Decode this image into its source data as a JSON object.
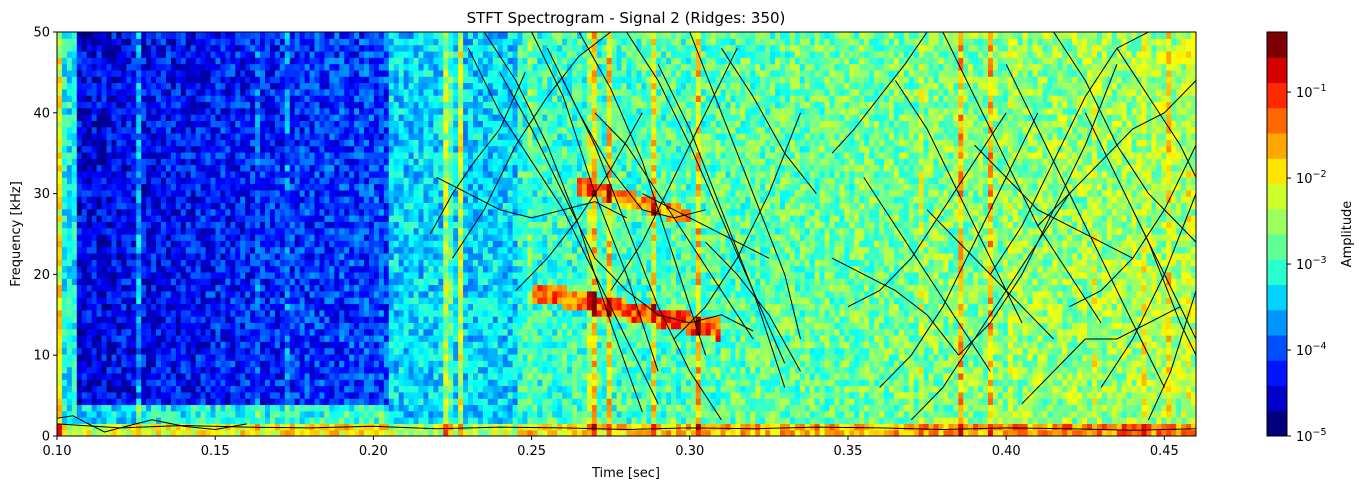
{
  "chart_data": {
    "type": "heatmap",
    "title": "STFT Spectrogram - Signal 2 (Ridges: 350)",
    "xlabel": "Time [sec]",
    "ylabel": "Frequency [kHz]",
    "xlim": [
      0.1,
      0.46
    ],
    "ylim": [
      0,
      50
    ],
    "x_ticks": [
      {
        "value": 0.1,
        "label": "0.10"
      },
      {
        "value": 0.15,
        "label": "0.15"
      },
      {
        "value": 0.2,
        "label": "0.20"
      },
      {
        "value": 0.25,
        "label": "0.25"
      },
      {
        "value": 0.3,
        "label": "0.30"
      },
      {
        "value": 0.35,
        "label": "0.35"
      },
      {
        "value": 0.4,
        "label": "0.40"
      },
      {
        "value": 0.45,
        "label": "0.45"
      }
    ],
    "y_ticks": [
      {
        "value": 0,
        "label": "0"
      },
      {
        "value": 10,
        "label": "10"
      },
      {
        "value": 20,
        "label": "20"
      },
      {
        "value": 30,
        "label": "30"
      },
      {
        "value": 40,
        "label": "40"
      },
      {
        "value": 50,
        "label": "50"
      }
    ],
    "colorbar": {
      "label": "Amplitude",
      "scale": "log",
      "range": [
        1e-05,
        0.5
      ],
      "colormap": "jet",
      "ticks": [
        {
          "value": 1e-05,
          "base": "10",
          "exp": "−5"
        },
        {
          "value": 0.0001,
          "base": "10",
          "exp": "−4"
        },
        {
          "value": 0.001,
          "base": "10",
          "exp": "−3"
        },
        {
          "value": 0.01,
          "base": "10",
          "exp": "−2"
        },
        {
          "value": 0.1,
          "base": "10",
          "exp": "−1"
        }
      ],
      "levels": [
        "#00007f",
        "#0000c8",
        "#0014ff",
        "#0050ff",
        "#0094ff",
        "#00d4ff",
        "#29ffce",
        "#60ff96",
        "#9aff5d",
        "#ceff29",
        "#ffe600",
        "#ffa700",
        "#ff6800",
        "#ff2900",
        "#d40000",
        "#7f0000"
      ]
    },
    "ridge_count": 350,
    "ridges": [
      {
        "t": [
          0.1,
          0.12,
          0.14,
          0.16,
          0.18,
          0.2,
          0.22,
          0.24,
          0.26,
          0.28,
          0.3,
          0.32,
          0.34,
          0.36,
          0.38,
          0.4,
          0.42,
          0.44,
          0.46
        ],
        "f": [
          1.5,
          1.0,
          1.3,
          1.1,
          1.0,
          1.2,
          0.9,
          1.1,
          1.0,
          0.8,
          1.0,
          0.9,
          1.1,
          1.0,
          0.8,
          1.0,
          0.9,
          0.7,
          0.9
        ]
      },
      {
        "t": [
          0.1,
          0.105,
          0.11,
          0.115,
          0.12,
          0.13,
          0.14,
          0.15,
          0.16
        ],
        "f": [
          2.2,
          2.5,
          1.5,
          0.5,
          1.0,
          2.0,
          1.2,
          0.8,
          1.5
        ]
      },
      {
        "t": [
          0.218,
          0.225,
          0.232,
          0.24,
          0.248
        ],
        "f": [
          25,
          30,
          34,
          38,
          45
        ]
      },
      {
        "t": [
          0.22,
          0.23,
          0.24,
          0.25,
          0.26,
          0.27,
          0.28
        ],
        "f": [
          32,
          30,
          28,
          27,
          28,
          29,
          27
        ]
      },
      {
        "t": [
          0.225,
          0.235,
          0.245,
          0.255,
          0.265,
          0.275
        ],
        "f": [
          22,
          28,
          36,
          42,
          47,
          50
        ]
      },
      {
        "t": [
          0.23,
          0.24,
          0.25,
          0.26,
          0.27,
          0.28,
          0.29
        ],
        "f": [
          48,
          40,
          34,
          28,
          20,
          12,
          4
        ]
      },
      {
        "t": [
          0.235,
          0.245,
          0.255,
          0.265,
          0.275,
          0.285
        ],
        "f": [
          50,
          44,
          36,
          26,
          14,
          3
        ]
      },
      {
        "t": [
          0.24,
          0.25,
          0.26,
          0.27,
          0.28,
          0.29,
          0.3,
          0.31,
          0.32
        ],
        "f": [
          45,
          38,
          30,
          22,
          18,
          15,
          14,
          15,
          13
        ]
      },
      {
        "t": [
          0.245,
          0.255,
          0.265,
          0.275,
          0.285
        ],
        "f": [
          18,
          22,
          27,
          33,
          40
        ]
      },
      {
        "t": [
          0.25,
          0.26,
          0.27,
          0.28,
          0.29
        ],
        "f": [
          50,
          42,
          30,
          20,
          8
        ]
      },
      {
        "t": [
          0.255,
          0.265,
          0.275,
          0.285,
          0.295,
          0.305
        ],
        "f": [
          48,
          40,
          33,
          28,
          27,
          28
        ]
      },
      {
        "t": [
          0.26,
          0.27,
          0.28,
          0.29,
          0.3,
          0.31
        ],
        "f": [
          44,
          36,
          26,
          16,
          8,
          2
        ]
      },
      {
        "t": [
          0.265,
          0.275,
          0.285,
          0.295,
          0.305
        ],
        "f": [
          50,
          43,
          34,
          22,
          10
        ]
      },
      {
        "t": [
          0.27,
          0.28,
          0.29,
          0.3,
          0.31,
          0.32
        ],
        "f": [
          40,
          36,
          30,
          24,
          18,
          12
        ]
      },
      {
        "t": [
          0.275,
          0.285,
          0.295,
          0.305,
          0.315
        ],
        "f": [
          18,
          24,
          32,
          40,
          48
        ]
      },
      {
        "t": [
          0.28,
          0.29,
          0.3,
          0.31,
          0.32,
          0.33
        ],
        "f": [
          50,
          44,
          36,
          27,
          18,
          9
        ]
      },
      {
        "t": [
          0.285,
          0.295,
          0.305,
          0.315,
          0.325
        ],
        "f": [
          30,
          28,
          26,
          24,
          22
        ]
      },
      {
        "t": [
          0.29,
          0.3,
          0.31,
          0.32,
          0.33
        ],
        "f": [
          46,
          38,
          28,
          18,
          6
        ]
      },
      {
        "t": [
          0.295,
          0.305,
          0.315,
          0.325,
          0.335
        ],
        "f": [
          12,
          16,
          22,
          30,
          40
        ]
      },
      {
        "t": [
          0.3,
          0.31,
          0.32,
          0.33,
          0.335
        ],
        "f": [
          50,
          40,
          30,
          20,
          12
        ]
      },
      {
        "t": [
          0.305,
          0.315,
          0.325,
          0.335
        ],
        "f": [
          24,
          20,
          15,
          8
        ]
      },
      {
        "t": [
          0.31,
          0.32,
          0.33,
          0.34
        ],
        "f": [
          48,
          42,
          35,
          30
        ]
      },
      {
        "t": [
          0.345,
          0.352,
          0.36,
          0.368,
          0.375
        ],
        "f": [
          35,
          38,
          42,
          46,
          50
        ]
      },
      {
        "t": [
          0.345,
          0.355,
          0.365,
          0.375,
          0.385
        ],
        "f": [
          22,
          20,
          18,
          15,
          10
        ]
      },
      {
        "t": [
          0.35,
          0.36,
          0.37,
          0.38,
          0.39,
          0.4
        ],
        "f": [
          16,
          18,
          22,
          28,
          34,
          40
        ]
      },
      {
        "t": [
          0.355,
          0.365,
          0.375,
          0.385,
          0.395
        ],
        "f": [
          32,
          26,
          20,
          14,
          8
        ]
      },
      {
        "t": [
          0.36,
          0.37,
          0.38,
          0.39,
          0.4,
          0.41
        ],
        "f": [
          6,
          10,
          16,
          24,
          32,
          40
        ]
      },
      {
        "t": [
          0.365,
          0.375,
          0.385,
          0.395,
          0.405
        ],
        "f": [
          44,
          38,
          30,
          22,
          14
        ]
      },
      {
        "t": [
          0.37,
          0.38,
          0.39,
          0.4,
          0.41,
          0.42
        ],
        "f": [
          2,
          6,
          12,
          18,
          24,
          30
        ]
      },
      {
        "t": [
          0.375,
          0.385,
          0.395,
          0.405,
          0.415
        ],
        "f": [
          28,
          24,
          20,
          16,
          12
        ]
      },
      {
        "t": [
          0.38,
          0.39,
          0.4,
          0.41,
          0.42,
          0.43
        ],
        "f": [
          50,
          42,
          34,
          26,
          20,
          14
        ]
      },
      {
        "t": [
          0.385,
          0.395,
          0.405,
          0.415,
          0.425,
          0.435
        ],
        "f": [
          10,
          14,
          20,
          28,
          36,
          46
        ]
      },
      {
        "t": [
          0.39,
          0.4,
          0.41,
          0.42,
          0.43,
          0.44
        ],
        "f": [
          36,
          32,
          28,
          26,
          24,
          22
        ]
      },
      {
        "t": [
          0.395,
          0.405,
          0.415,
          0.425,
          0.435,
          0.445
        ],
        "f": [
          20,
          26,
          34,
          42,
          48,
          50
        ]
      },
      {
        "t": [
          0.4,
          0.41,
          0.42,
          0.43,
          0.44,
          0.45
        ],
        "f": [
          46,
          38,
          30,
          22,
          14,
          6
        ]
      },
      {
        "t": [
          0.405,
          0.415,
          0.425,
          0.435,
          0.445,
          0.455
        ],
        "f": [
          4,
          8,
          12,
          12,
          14,
          16
        ]
      },
      {
        "t": [
          0.41,
          0.42,
          0.43,
          0.44,
          0.45,
          0.46
        ],
        "f": [
          26,
          30,
          34,
          38,
          40,
          44
        ]
      },
      {
        "t": [
          0.415,
          0.425,
          0.435,
          0.445,
          0.455,
          0.46
        ],
        "f": [
          50,
          44,
          36,
          30,
          26,
          24
        ]
      },
      {
        "t": [
          0.42,
          0.43,
          0.44,
          0.45,
          0.46
        ],
        "f": [
          16,
          18,
          22,
          28,
          36
        ]
      },
      {
        "t": [
          0.425,
          0.435,
          0.445,
          0.455,
          0.46
        ],
        "f": [
          40,
          32,
          24,
          14,
          10
        ]
      },
      {
        "t": [
          0.43,
          0.44,
          0.45,
          0.46
        ],
        "f": [
          6,
          12,
          20,
          30
        ]
      },
      {
        "t": [
          0.435,
          0.445,
          0.455,
          0.46
        ],
        "f": [
          48,
          42,
          36,
          32
        ]
      },
      {
        "t": [
          0.44,
          0.45,
          0.46
        ],
        "f": [
          28,
          20,
          12
        ]
      },
      {
        "t": [
          0.445,
          0.452,
          0.46
        ],
        "f": [
          2,
          8,
          18
        ]
      }
    ]
  }
}
